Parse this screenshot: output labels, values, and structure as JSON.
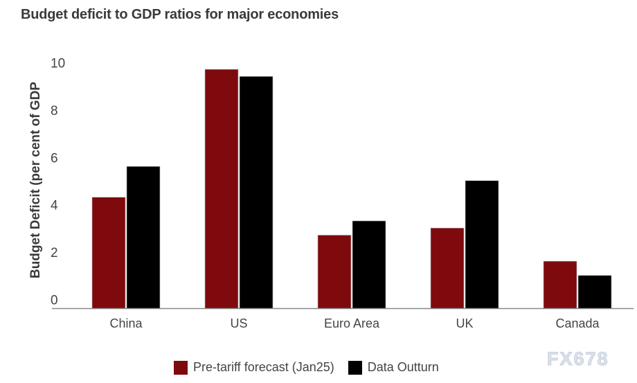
{
  "title": "Budget deficit to GDP ratios for major economies",
  "watermark": "FX678",
  "chart_data": {
    "type": "bar",
    "title": "Budget deficit to GDP ratios for major economies",
    "xlabel": "",
    "ylabel": "Budget Deficit (per cent of GDP",
    "ylim": [
      0,
      10
    ],
    "yticks": [
      0,
      2,
      4,
      6,
      8,
      10
    ],
    "grid": false,
    "legend": "bottom",
    "categories": [
      "China",
      "US",
      "Euro Area",
      "UK",
      "Canada"
    ],
    "series": [
      {
        "name": "Pre-tariff forecast (Jan25)",
        "color": "#7e0a0e",
        "values": [
          4.7,
          10.1,
          3.1,
          3.4,
          2.0
        ]
      },
      {
        "name": "Data Outturn",
        "color": "#000000",
        "values": [
          6.0,
          9.8,
          3.7,
          5.4,
          1.4
        ]
      }
    ]
  }
}
